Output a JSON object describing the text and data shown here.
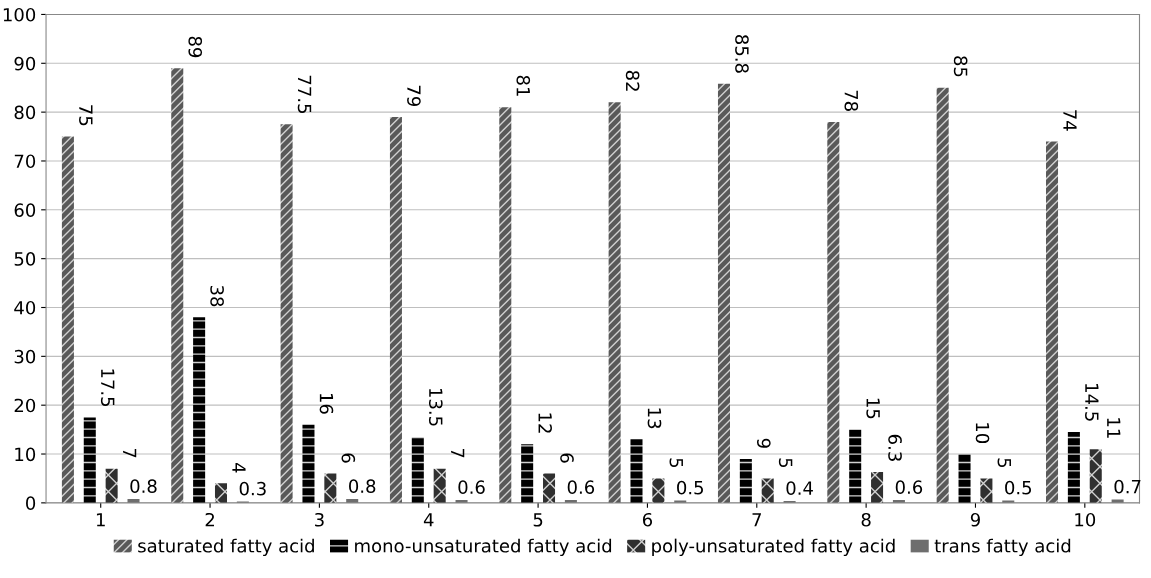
{
  "chart_data": {
    "type": "bar",
    "categories": [
      "1",
      "2",
      "3",
      "4",
      "5",
      "6",
      "7",
      "8",
      "9",
      "10"
    ],
    "series": [
      {
        "name": "saturated fatty acid",
        "color": "#595959",
        "values": [
          75,
          89,
          77.5,
          79,
          81,
          82,
          85.8,
          78,
          85,
          74
        ]
      },
      {
        "name": "mono-unsaturated fatty acid",
        "color": "#000000",
        "values": [
          17.5,
          38,
          16,
          13.5,
          12,
          13,
          9,
          15,
          10,
          14.5
        ]
      },
      {
        "name": "poly-unsaturated fatty acid",
        "color": "#303030",
        "values": [
          7,
          4,
          6,
          7,
          6,
          5,
          5,
          6.3,
          5,
          11
        ]
      },
      {
        "name": "trans fatty acid",
        "color": "#6e6e6e",
        "values": [
          0.8,
          0.3,
          0.8,
          0.6,
          0.6,
          0.5,
          0.4,
          0.6,
          0.5,
          0.7
        ]
      }
    ],
    "ylim": [
      0,
      100
    ],
    "yticks": [
      0,
      10,
      20,
      30,
      40,
      50,
      60,
      70,
      80,
      90,
      100
    ],
    "grid": "y",
    "legend": "bottom",
    "data_labels": true
  }
}
